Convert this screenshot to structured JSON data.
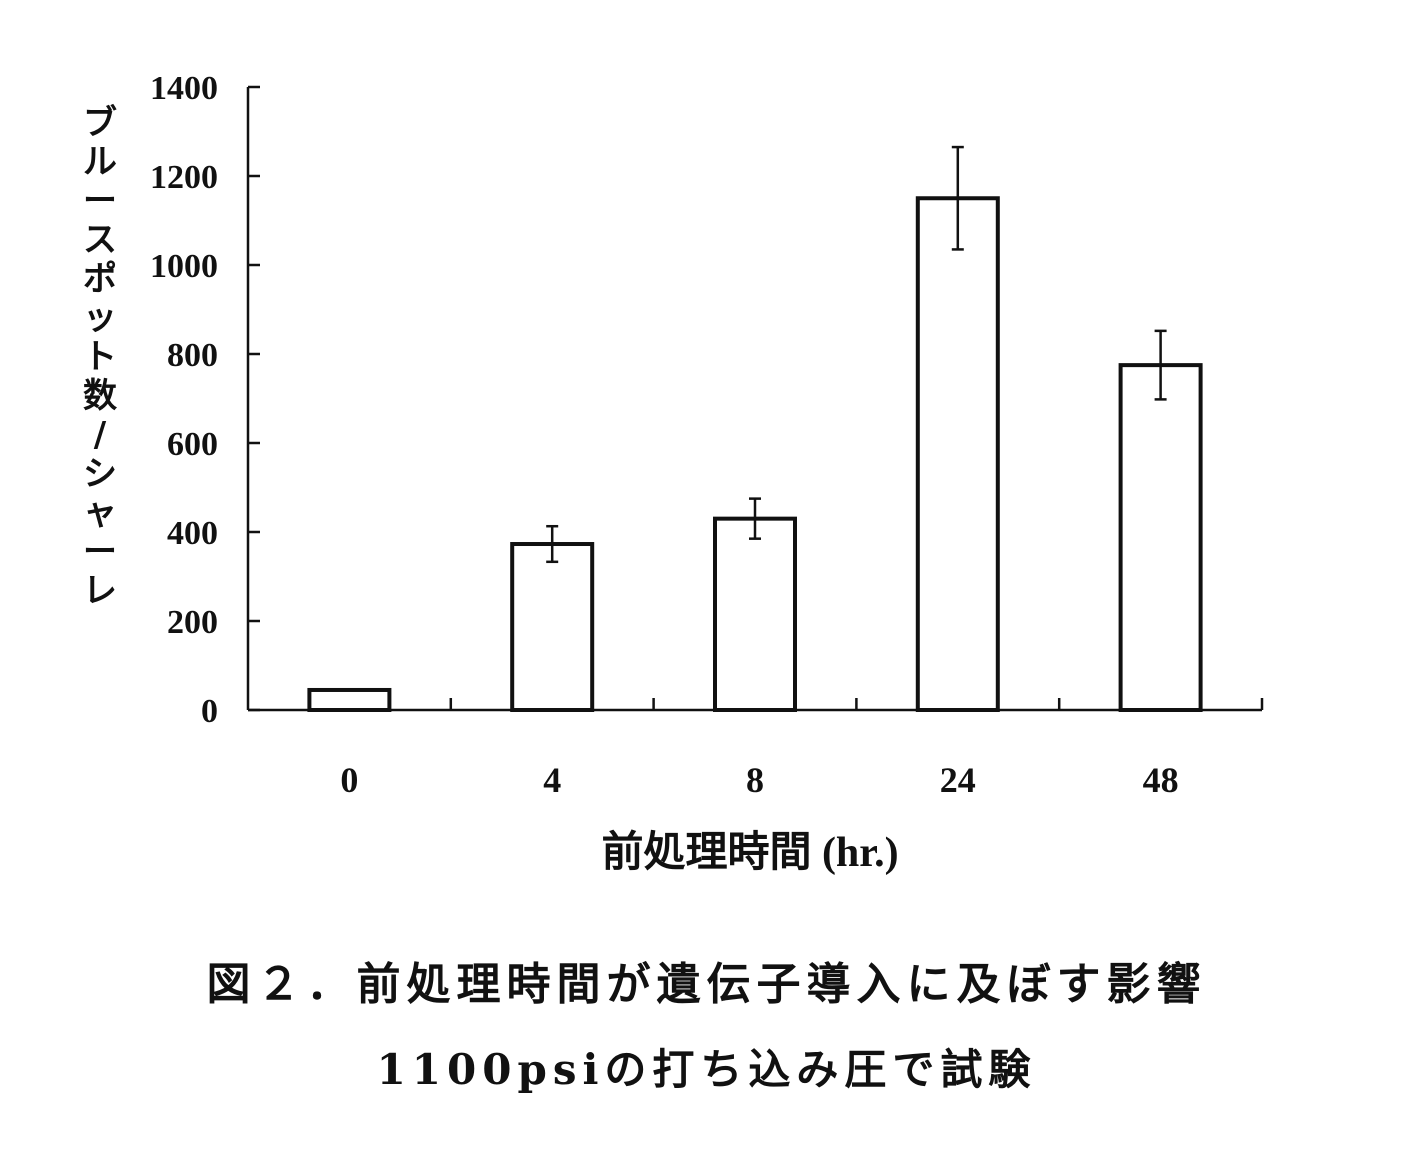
{
  "chart_data": {
    "type": "bar",
    "categories": [
      "0",
      "4",
      "8",
      "24",
      "48"
    ],
    "values": [
      45,
      373,
      430,
      1150,
      775
    ],
    "errors": [
      0,
      40,
      45,
      115,
      77
    ],
    "xlabel": "前処理時間 (hr.)",
    "ylabel": "ブルースポット数/シャーレ",
    "ylim": [
      0,
      1400
    ],
    "yticks": [
      "0",
      "200",
      "400",
      "600",
      "800",
      "1000",
      "1200",
      "1400"
    ],
    "grid": false,
    "legend": "none"
  },
  "caption": {
    "title": "図２．前処理時間が遺伝子導入に及ぼす影響",
    "subtitle": "1100psiの打ち込み圧で試験"
  },
  "colors": {
    "bar_fill": "#ffffff",
    "bar_stroke": "#111111",
    "axis": "#111111"
  }
}
